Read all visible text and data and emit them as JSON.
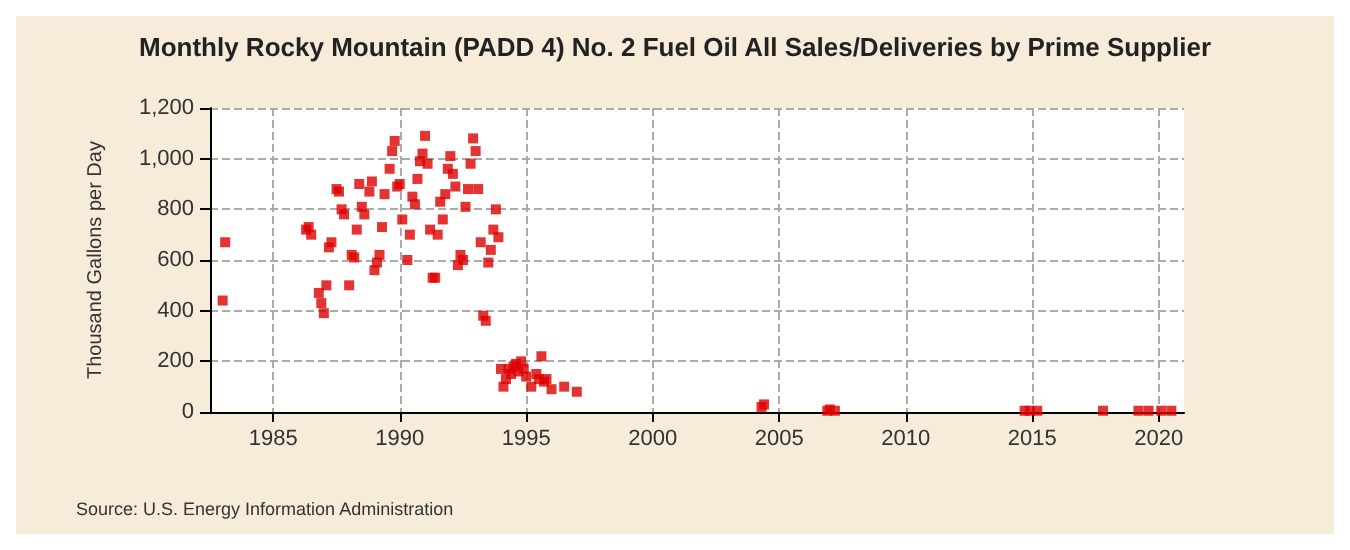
{
  "chart_data": {
    "type": "scatter",
    "title": "Monthly Rocky Mountain (PADD 4) No. 2 Fuel Oil All Sales/Deliveries by Prime Supplier",
    "ylabel": "Thousand Gallons per Day",
    "annotations": [
      "Source: U.S. Energy Information Administration"
    ],
    "marker": "square",
    "grid": true,
    "xlim": [
      1982.5,
      2021
    ],
    "xticks": [
      1985,
      1990,
      1995,
      2000,
      2005,
      2010,
      2015,
      2020
    ],
    "ylim": [
      0,
      1200
    ],
    "yticks": [
      {
        "value": 0,
        "label": "0"
      },
      {
        "value": 200,
        "label": "200"
      },
      {
        "value": 400,
        "label": "400"
      },
      {
        "value": 600,
        "label": "600"
      },
      {
        "value": 800,
        "label": "800"
      },
      {
        "value": 1000,
        "label": "1,000"
      },
      {
        "value": 1200,
        "label": "1,200"
      }
    ],
    "series": [
      {
        "color": "#dd0000",
        "x": [
          1983.0,
          1983.1,
          1986.3,
          1986.4,
          1986.5,
          1986.8,
          1986.9,
          1987.0,
          1987.1,
          1987.2,
          1987.3,
          1987.5,
          1987.6,
          1987.7,
          1987.8,
          1988.0,
          1988.1,
          1988.2,
          1988.3,
          1988.4,
          1988.5,
          1988.6,
          1988.8,
          1988.9,
          1989.0,
          1989.1,
          1989.2,
          1989.3,
          1989.4,
          1989.6,
          1989.7,
          1989.8,
          1989.9,
          1990.0,
          1990.1,
          1990.3,
          1990.4,
          1990.5,
          1990.6,
          1990.7,
          1990.8,
          1990.9,
          1991.0,
          1991.1,
          1991.2,
          1991.3,
          1991.4,
          1991.5,
          1991.6,
          1991.7,
          1991.8,
          1991.9,
          1992.0,
          1992.1,
          1992.2,
          1992.3,
          1992.4,
          1992.5,
          1992.6,
          1992.7,
          1992.8,
          1992.9,
          1993.0,
          1993.1,
          1993.2,
          1993.3,
          1993.4,
          1993.5,
          1993.6,
          1993.7,
          1993.8,
          1993.9,
          1994.0,
          1994.1,
          1994.2,
          1994.3,
          1994.4,
          1994.5,
          1994.6,
          1994.7,
          1994.8,
          1994.9,
          1995.0,
          1995.2,
          1995.4,
          1995.5,
          1995.6,
          1995.7,
          1995.8,
          1996.0,
          1996.5,
          1997.0,
          2004.3,
          2004.4,
          2006.9,
          2007.0,
          2007.2,
          2014.7,
          2014.9,
          2015.2,
          2017.8,
          2019.2,
          2019.6,
          2020.1,
          2020.5
        ],
        "values": [
          440,
          670,
          720,
          730,
          700,
          470,
          430,
          390,
          500,
          650,
          670,
          880,
          870,
          800,
          780,
          500,
          620,
          610,
          720,
          900,
          810,
          780,
          870,
          910,
          560,
          590,
          620,
          730,
          860,
          960,
          1030,
          1070,
          890,
          900,
          760,
          600,
          700,
          850,
          820,
          920,
          990,
          1020,
          1090,
          980,
          720,
          530,
          530,
          700,
          830,
          760,
          860,
          960,
          1010,
          940,
          890,
          580,
          620,
          600,
          810,
          880,
          980,
          1080,
          1030,
          880,
          670,
          380,
          360,
          590,
          640,
          720,
          800,
          690,
          170,
          100,
          130,
          170,
          150,
          180,
          190,
          160,
          200,
          170,
          140,
          100,
          150,
          130,
          220,
          120,
          130,
          90,
          100,
          80,
          20,
          30,
          5,
          10,
          5,
          5,
          5,
          5,
          5,
          5,
          5,
          5,
          5
        ]
      }
    ]
  }
}
